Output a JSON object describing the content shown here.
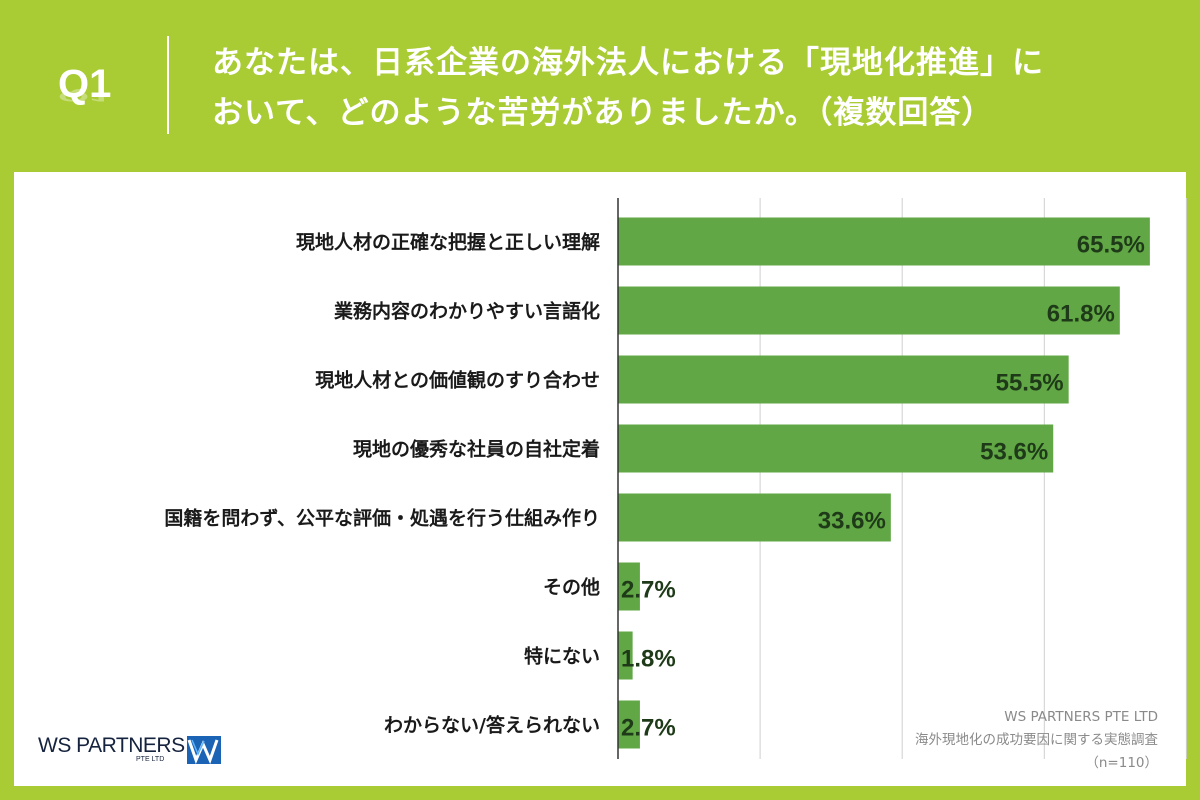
{
  "question": {
    "number": "Q1",
    "text_line1": "あなたは、日系企業の海外法人における「現地化推進」に",
    "text_line2": "おいて、どのような苦労がありましたか。（複数回答）"
  },
  "chart_data": {
    "type": "bar",
    "orientation": "horizontal",
    "categories": [
      "現地人材の正確な把握と正しい理解",
      "業務内容のわかりやすい言語化",
      "現地人材との価値観のすり合わせ",
      "現地の優秀な社員の自社定着",
      "国籍を問わず、公平な評価・処遇を行う仕組み作り",
      "その他",
      "特にない",
      "わからない/答えられない"
    ],
    "values": [
      65.5,
      61.8,
      55.5,
      53.6,
      33.6,
      2.7,
      1.8,
      2.7
    ],
    "value_labels": [
      "65.5%",
      "61.8%",
      "55.5%",
      "53.6%",
      "33.6%",
      "2.7%",
      "1.8%",
      "2.7%"
    ],
    "xlim": [
      0,
      70
    ],
    "grid": true,
    "colors": {
      "bar": "#61a745",
      "label": "#1e3a18",
      "grid": "#cfcfcf",
      "axis": "#333333"
    }
  },
  "footer": {
    "company": "WS PARTNERS PTE LTD",
    "survey_title": "海外現地化の成功要因に関する実態調査",
    "sample_size": "（n=110）"
  },
  "logo": {
    "name": "WS PARTNERS",
    "sub": "PTE LTD",
    "mark_icon": "ws-partners-logo-mark"
  },
  "colors": {
    "background": "#a9cb33",
    "panel": "#ffffff",
    "header_text": "#ffffff"
  }
}
